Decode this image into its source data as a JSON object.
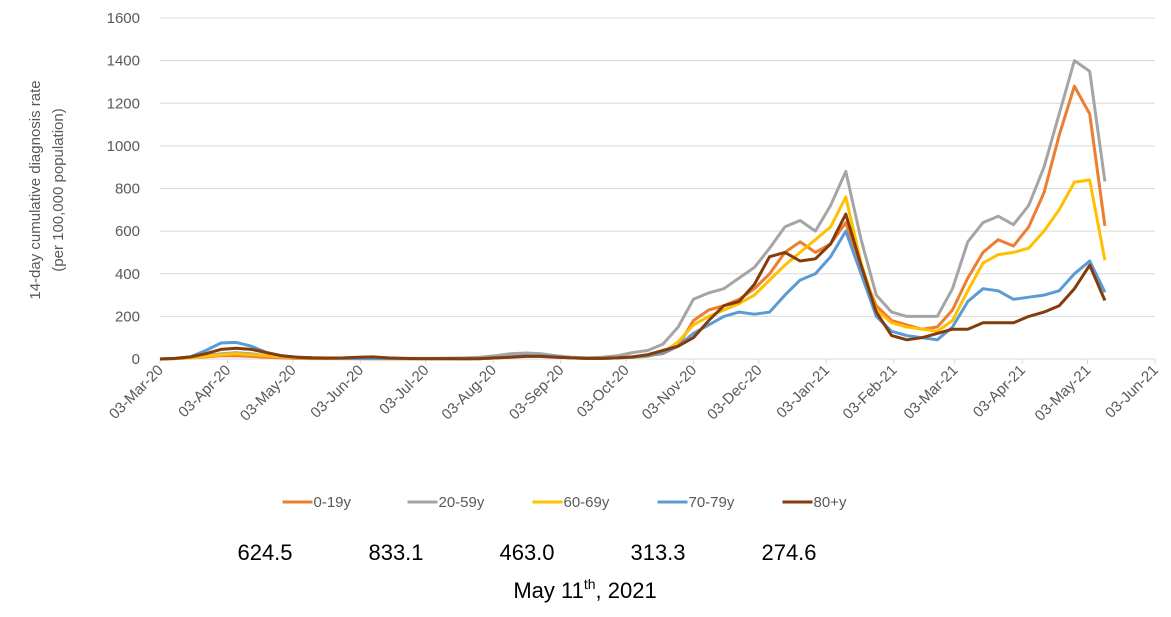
{
  "chart_data": {
    "type": "line",
    "ylabel": [
      "14-day cumulative diagnosis rate",
      "(per 100,000 population)"
    ],
    "x": [
      "2020-03-03",
      "2020-03-10",
      "2020-03-17",
      "2020-03-24",
      "2020-03-31",
      "2020-04-07",
      "2020-04-14",
      "2020-04-21",
      "2020-04-28",
      "2020-05-05",
      "2020-05-12",
      "2020-05-19",
      "2020-05-26",
      "2020-06-02",
      "2020-06-09",
      "2020-06-16",
      "2020-06-23",
      "2020-06-30",
      "2020-07-07",
      "2020-07-14",
      "2020-07-21",
      "2020-07-28",
      "2020-08-04",
      "2020-08-11",
      "2020-08-18",
      "2020-08-25",
      "2020-09-01",
      "2020-09-08",
      "2020-09-15",
      "2020-09-22",
      "2020-09-29",
      "2020-10-06",
      "2020-10-13",
      "2020-10-20",
      "2020-10-27",
      "2020-11-03",
      "2020-11-10",
      "2020-11-17",
      "2020-11-24",
      "2020-12-01",
      "2020-12-08",
      "2020-12-15",
      "2020-12-22",
      "2020-12-29",
      "2021-01-05",
      "2021-01-12",
      "2021-01-19",
      "2021-01-26",
      "2021-02-02",
      "2021-02-09",
      "2021-02-16",
      "2021-02-23",
      "2021-03-02",
      "2021-03-09",
      "2021-03-16",
      "2021-03-23",
      "2021-03-30",
      "2021-04-06",
      "2021-04-13",
      "2021-04-20",
      "2021-04-27",
      "2021-05-04",
      "2021-05-11"
    ],
    "series": [
      {
        "name": "0-19y",
        "color": "#ed7d31",
        "values": [
          0,
          2,
          5,
          10,
          15,
          15,
          12,
          8,
          5,
          3,
          2,
          2,
          2,
          2,
          1,
          1,
          1,
          1,
          1,
          1,
          1,
          2,
          5,
          10,
          15,
          15,
          10,
          5,
          3,
          3,
          5,
          10,
          15,
          25,
          60,
          180,
          230,
          250,
          280,
          330,
          400,
          500,
          550,
          500,
          540,
          640,
          420,
          250,
          180,
          160,
          140,
          150,
          230,
          380,
          500,
          560,
          530,
          620,
          780,
          1050,
          1280,
          1150,
          624.5
        ]
      },
      {
        "name": "20-59y",
        "color": "#a5a5a5",
        "values": [
          0,
          3,
          8,
          15,
          25,
          30,
          25,
          15,
          10,
          8,
          6,
          5,
          4,
          3,
          3,
          3,
          3,
          3,
          3,
          4,
          5,
          8,
          15,
          25,
          28,
          25,
          15,
          8,
          5,
          8,
          15,
          30,
          40,
          70,
          150,
          280,
          310,
          330,
          380,
          430,
          520,
          620,
          650,
          600,
          720,
          880,
          560,
          300,
          220,
          200,
          200,
          200,
          330,
          550,
          640,
          670,
          630,
          720,
          900,
          1150,
          1400,
          1350,
          833.1
        ]
      },
      {
        "name": "60-69y",
        "color": "#ffc000",
        "values": [
          0,
          2,
          5,
          12,
          20,
          25,
          20,
          15,
          10,
          6,
          4,
          3,
          2,
          2,
          1,
          1,
          1,
          1,
          1,
          1,
          1,
          2,
          5,
          10,
          15,
          15,
          10,
          5,
          3,
          3,
          5,
          8,
          12,
          30,
          80,
          160,
          200,
          230,
          260,
          300,
          370,
          440,
          500,
          560,
          620,
          760,
          450,
          230,
          170,
          150,
          140,
          130,
          180,
          320,
          450,
          490,
          500,
          520,
          600,
          700,
          830,
          840,
          463.0
        ]
      },
      {
        "name": "70-79y",
        "color": "#5b9bd5",
        "values": [
          0,
          3,
          10,
          40,
          75,
          78,
          60,
          30,
          15,
          8,
          5,
          4,
          3,
          2,
          2,
          2,
          2,
          1,
          1,
          1,
          1,
          2,
          5,
          10,
          15,
          15,
          10,
          5,
          3,
          3,
          5,
          8,
          15,
          30,
          60,
          120,
          160,
          200,
          220,
          210,
          220,
          300,
          370,
          400,
          480,
          600,
          400,
          200,
          130,
          110,
          100,
          90,
          150,
          270,
          330,
          320,
          280,
          290,
          300,
          320,
          400,
          460,
          313.3
        ]
      },
      {
        "name": "80+y",
        "color": "#843c0c",
        "values": [
          0,
          3,
          10,
          25,
          45,
          50,
          45,
          30,
          15,
          8,
          5,
          4,
          5,
          8,
          10,
          5,
          3,
          2,
          2,
          2,
          1,
          2,
          5,
          8,
          12,
          12,
          8,
          5,
          3,
          3,
          5,
          10,
          20,
          40,
          60,
          100,
          180,
          250,
          270,
          350,
          480,
          500,
          460,
          470,
          540,
          680,
          440,
          220,
          110,
          90,
          100,
          120,
          140,
          140,
          170,
          170,
          170,
          200,
          220,
          250,
          330,
          440,
          274.6
        ]
      }
    ],
    "xlim": [
      "2020-03-03",
      "2021-06-03"
    ],
    "xticks": [
      {
        "value": "2020-03-03",
        "label": "03-Mar-20"
      },
      {
        "value": "2020-04-03",
        "label": "03-Apr-20"
      },
      {
        "value": "2020-05-03",
        "label": "03-May-20"
      },
      {
        "value": "2020-06-03",
        "label": "03-Jun-20"
      },
      {
        "value": "2020-07-03",
        "label": "03-Jul-20"
      },
      {
        "value": "2020-08-03",
        "label": "03-Aug-20"
      },
      {
        "value": "2020-09-03",
        "label": "03-Sep-20"
      },
      {
        "value": "2020-10-03",
        "label": "03-Oct-20"
      },
      {
        "value": "2020-11-03",
        "label": "03-Nov-20"
      },
      {
        "value": "2020-12-03",
        "label": "03-Dec-20"
      },
      {
        "value": "2021-01-03",
        "label": "03-Jan-21"
      },
      {
        "value": "2021-02-03",
        "label": "03-Feb-21"
      },
      {
        "value": "2021-03-03",
        "label": "03-Mar-21"
      },
      {
        "value": "2021-04-03",
        "label": "03-Apr-21"
      },
      {
        "value": "2021-05-03",
        "label": "03-May-21"
      },
      {
        "value": "2021-06-03",
        "label": "03-Jun-21"
      }
    ],
    "ylim": [
      0,
      1600
    ],
    "yticks": [
      0,
      200,
      400,
      600,
      800,
      1000,
      1200,
      1400,
      1600
    ],
    "grid": true,
    "legend": "bottom",
    "latest_labels": [
      "624.5",
      "833.1",
      "463.0",
      "313.3",
      "274.6"
    ],
    "footnote": {
      "text": "May 11",
      "superscript": "th",
      "tail": ", 2021"
    }
  }
}
